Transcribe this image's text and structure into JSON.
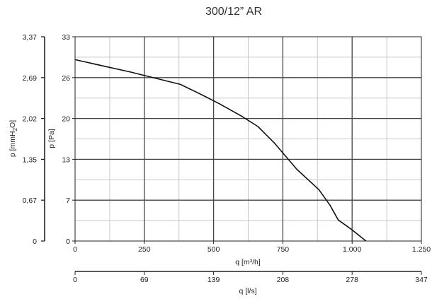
{
  "chart_data": {
    "type": "line",
    "title": "300/12” AR",
    "series": [
      {
        "x": [
          0,
          100,
          200,
          300,
          380,
          450,
          520,
          600,
          660,
          720,
          800,
          880,
          920,
          950,
          1000,
          1050
        ],
        "y": [
          29.3,
          28.3,
          27.3,
          26.2,
          25.3,
          23.8,
          22.2,
          20.2,
          18.5,
          15.8,
          11.6,
          8.3,
          5.8,
          3.4,
          1.8,
          0
        ]
      }
    ],
    "x_axis": {
      "label": "q [m³/h]",
      "ticks": [
        "0",
        "250",
        "500",
        "750",
        "1.000",
        "1.250"
      ],
      "range": [
        0,
        1250
      ]
    },
    "x2_axis": {
      "label": "q [l/s]",
      "ticks": [
        "0",
        "69",
        "139",
        "208",
        "278",
        "347"
      ]
    },
    "y_axis": {
      "label": "p [Pa]",
      "ticks": [
        "0",
        "7",
        "13",
        "20",
        "26",
        "33"
      ],
      "range": [
        0,
        33
      ]
    },
    "y2_axis": {
      "label_text": "p [mmH",
      "label_sub": "2",
      "label_tail": "O]",
      "ticks": [
        "0",
        "0,67",
        "1,35",
        "2,02",
        "2,69",
        "3,37"
      ]
    },
    "grid": true,
    "colors": {
      "line": "#111111",
      "major_grid": "#444444",
      "minor_grid": "#c8c8c8",
      "axis": "#222222"
    }
  }
}
